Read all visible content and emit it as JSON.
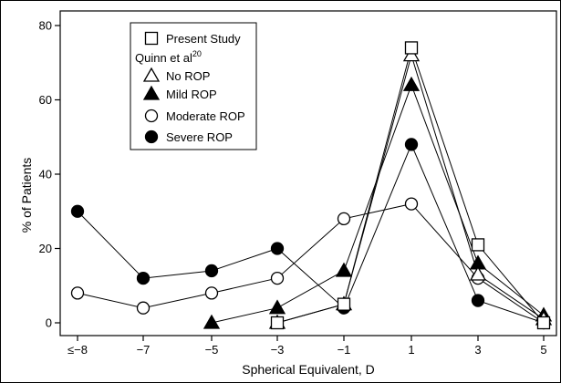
{
  "chart_data": {
    "type": "line",
    "xlabel": "Spherical Equivalent, D",
    "ylabel": "% of Patients",
    "ylim": [
      0,
      80
    ],
    "yticks": [
      "0",
      "20",
      "40",
      "60",
      "80"
    ],
    "xticks": [
      {
        "value": -8,
        "label": "≤−8"
      },
      {
        "value": -7,
        "label": "−7"
      },
      {
        "value": -5,
        "label": "−5"
      },
      {
        "value": -3,
        "label": "−3"
      },
      {
        "value": -1,
        "label": "−1"
      },
      {
        "value": 1,
        "label": "1"
      },
      {
        "value": 3,
        "label": "3"
      },
      {
        "value": 5,
        "label": "5"
      }
    ],
    "grid": false,
    "legend_position": "top-left",
    "legend_group_label": "Quinn et al",
    "legend_group_sup": "20",
    "series": [
      {
        "name": "Present Study",
        "marker": "square-open",
        "points": [
          [
            -3,
            0
          ],
          [
            -1,
            5
          ],
          [
            1,
            74
          ],
          [
            3,
            21
          ],
          [
            5,
            0
          ]
        ]
      },
      {
        "name": "No ROP",
        "marker": "triangle-open",
        "points": [
          [
            -3,
            0
          ],
          [
            -1,
            5
          ],
          [
            1,
            72
          ],
          [
            3,
            13
          ],
          [
            5,
            1
          ]
        ]
      },
      {
        "name": "Mild ROP",
        "marker": "triangle-filled",
        "points": [
          [
            -5,
            0
          ],
          [
            -3,
            4
          ],
          [
            -1,
            14
          ],
          [
            1,
            64
          ],
          [
            3,
            16
          ],
          [
            5,
            2
          ]
        ]
      },
      {
        "name": "Moderate ROP",
        "marker": "circle-open",
        "points": [
          [
            -8,
            8
          ],
          [
            -7,
            4
          ],
          [
            -5,
            8
          ],
          [
            -3,
            12
          ],
          [
            -1,
            28
          ],
          [
            1,
            32
          ],
          [
            3,
            12
          ],
          [
            5,
            0
          ]
        ]
      },
      {
        "name": "Severe ROP",
        "marker": "circle-filled",
        "points": [
          [
            -8,
            30
          ],
          [
            -7,
            12
          ],
          [
            -5,
            14
          ],
          [
            -3,
            20
          ],
          [
            -1,
            4
          ],
          [
            1,
            48
          ],
          [
            3,
            6
          ],
          [
            5,
            0
          ]
        ]
      }
    ]
  }
}
